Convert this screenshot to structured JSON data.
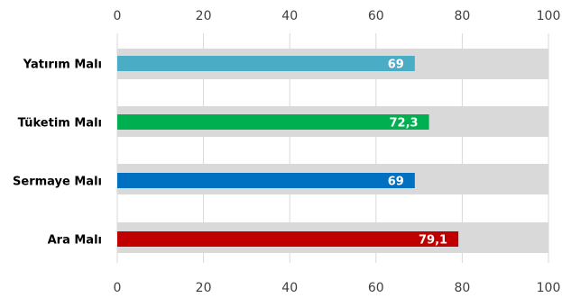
{
  "chart_data": {
    "type": "bar",
    "orientation": "horizontal",
    "title": "",
    "xlabel": "",
    "ylabel": "",
    "xlim": [
      0,
      100
    ],
    "x_ticks": [
      0,
      20,
      40,
      60,
      80,
      100
    ],
    "x_tick_labels": [
      "0",
      "20",
      "40",
      "60",
      "80",
      "100"
    ],
    "x_axis_labels_position": "top-and-bottom",
    "grid": true,
    "background_bar_value": 100,
    "background_bar_color": "#d9d9d9",
    "categories": [
      "Yatırım Malı",
      "Tüketim Malı",
      "Sermaye Malı",
      "Ara Malı"
    ],
    "values": [
      69,
      72.3,
      69,
      79.1
    ],
    "value_labels": [
      "69",
      "72,3",
      "69",
      "79,1"
    ],
    "colors": [
      "#4bacc6",
      "#00b050",
      "#0070c0",
      "#c00000"
    ]
  }
}
